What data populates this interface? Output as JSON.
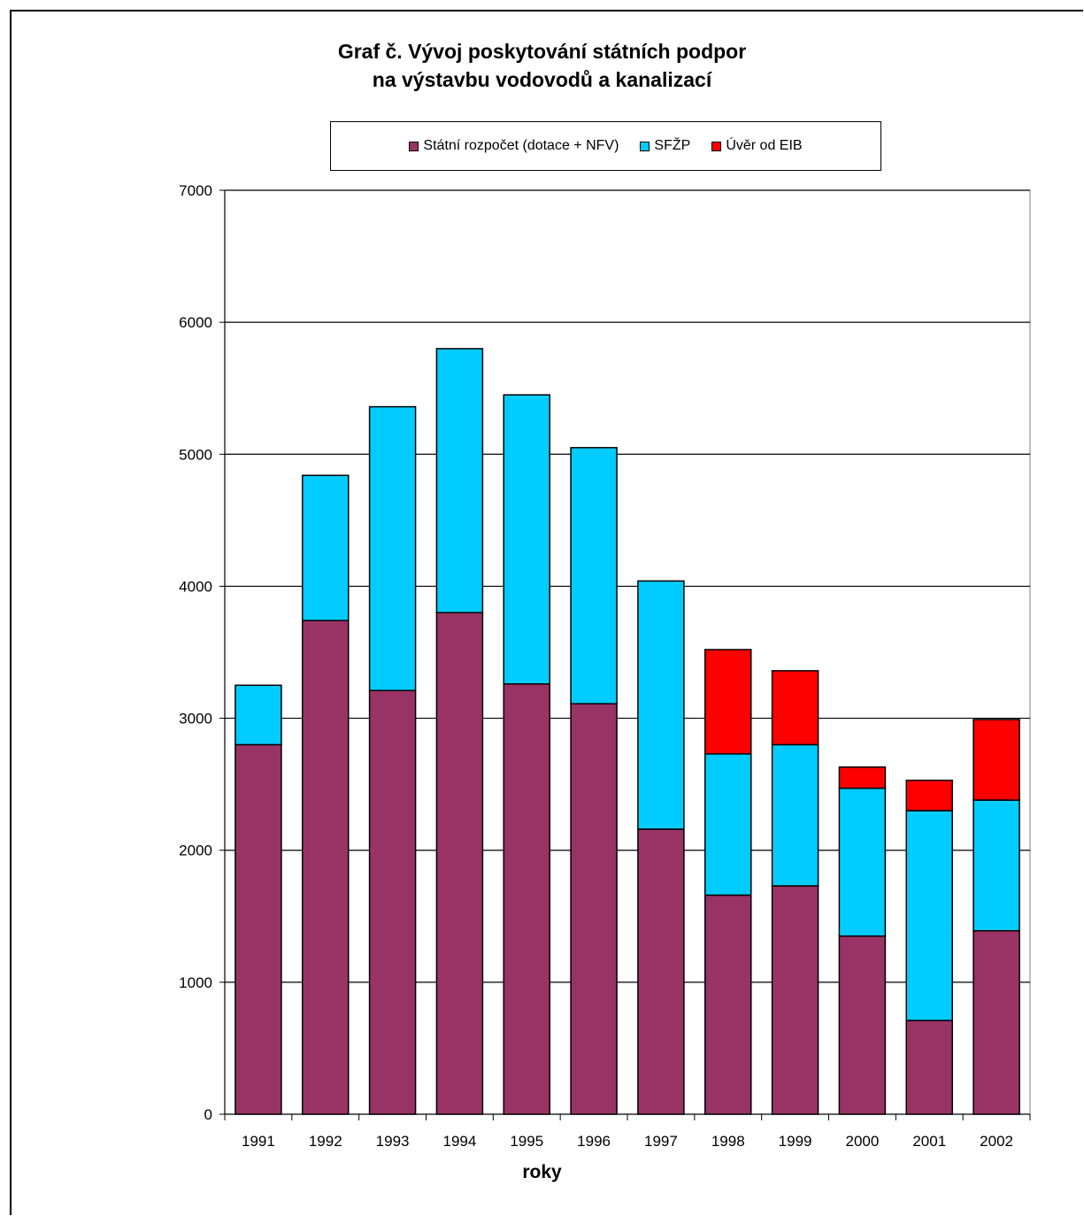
{
  "chart_data": {
    "type": "bar",
    "stacked": true,
    "title_lines": [
      "Graf č. Vývoj poskytování státních podpor",
      "na výstavbu vodovodů a kanalizací"
    ],
    "xlabel": "roky",
    "ylabel": "",
    "ylim": [
      0,
      7000
    ],
    "yticks": [
      0,
      1000,
      2000,
      3000,
      4000,
      5000,
      6000,
      7000
    ],
    "grid": true,
    "legend_position": "top",
    "categories": [
      "1991",
      "1992",
      "1993",
      "1994",
      "1995",
      "1996",
      "1997",
      "1998",
      "1999",
      "2000",
      "2001",
      "2002"
    ],
    "series": [
      {
        "name": "Státní rozpočet (dotace + NFV)",
        "color": "#993366",
        "values": [
          2800,
          3740,
          3210,
          3800,
          3260,
          3110,
          2160,
          1660,
          1730,
          1350,
          710,
          1390
        ]
      },
      {
        "name": "SFŽP",
        "color": "#00ccff",
        "values": [
          450,
          1100,
          2150,
          2000,
          2190,
          1940,
          1880,
          1070,
          1070,
          1120,
          1590,
          990
        ]
      },
      {
        "name": "Úvěr od EIB",
        "color": "#ff0000",
        "values": [
          0,
          0,
          0,
          0,
          0,
          0,
          0,
          790,
          560,
          160,
          230,
          610
        ]
      }
    ]
  }
}
